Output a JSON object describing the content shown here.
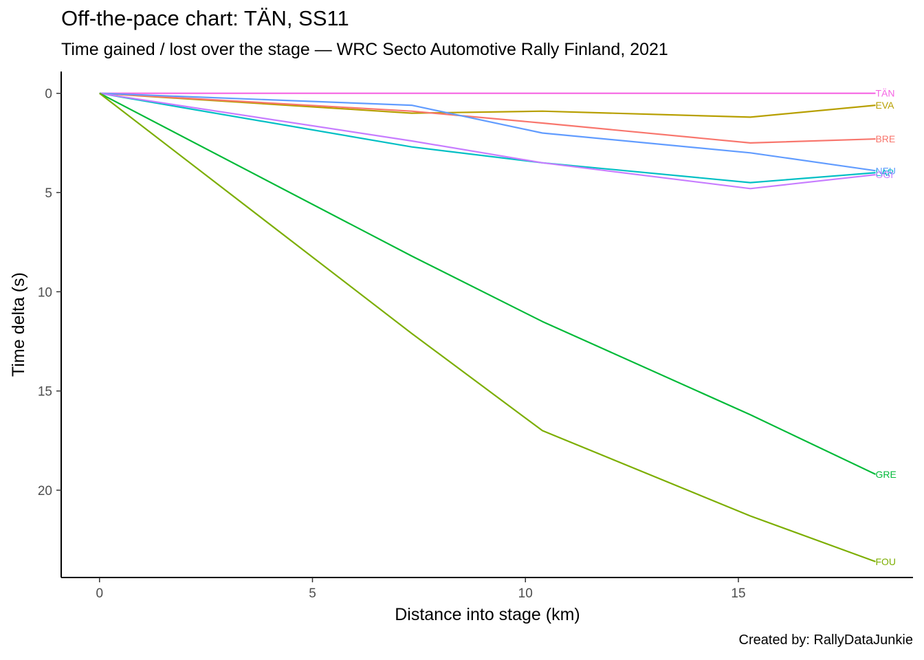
{
  "chart_data": {
    "type": "line",
    "title": "Off-the-pace chart: TÄN, SS11",
    "subtitle": "Time gained / lost over the stage — WRC Secto Automotive Rally Finland, 2021",
    "caption": "Created by: RallyDataJunkie",
    "xlabel": "Distance into stage (km)",
    "ylabel": "Time delta (s)",
    "xlim": [
      -0.9,
      19.1
    ],
    "ylim": [
      -1.1,
      24.4
    ],
    "y_reversed": true,
    "x_ticks": [
      0,
      5,
      10,
      15
    ],
    "y_ticks": [
      0,
      5,
      10,
      15,
      20
    ],
    "grid": false,
    "legend": "none (labels at line ends)",
    "series": [
      {
        "name": "TÄN",
        "color": "#F564E3",
        "x": [
          0,
          7.33,
          10.4,
          15.28,
          18.22
        ],
        "y": [
          0,
          0,
          0,
          0,
          0
        ]
      },
      {
        "name": "EVA",
        "color": "#B79F00",
        "x": [
          0,
          7.33,
          10.4,
          15.28,
          18.22
        ],
        "y": [
          0,
          1.0,
          0.9,
          1.2,
          0.6
        ]
      },
      {
        "name": "BRE",
        "color": "#F8766D",
        "x": [
          0,
          7.33,
          10.4,
          15.28,
          18.22
        ],
        "y": [
          0,
          0.9,
          1.5,
          2.5,
          2.3
        ]
      },
      {
        "name": "NEU",
        "color": "#619CFF",
        "x": [
          0,
          7.33,
          10.4,
          15.28,
          18.22
        ],
        "y": [
          0,
          0.6,
          2.0,
          3.0,
          3.9
        ]
      },
      {
        "name": "LAP",
        "color": "#00BFC4",
        "x": [
          0,
          7.33,
          10.4,
          15.28,
          18.22
        ],
        "y": [
          0,
          2.7,
          3.5,
          4.5,
          4.0
        ]
      },
      {
        "name": "OGI",
        "color": "#C77CFF",
        "x": [
          0,
          7.33,
          10.4,
          15.28,
          18.22
        ],
        "y": [
          0,
          2.4,
          3.5,
          4.8,
          4.1
        ]
      },
      {
        "name": "GRE",
        "color": "#00BA38",
        "x": [
          0,
          7.33,
          10.4,
          15.28,
          18.22
        ],
        "y": [
          0,
          8.2,
          11.5,
          16.2,
          19.2
        ]
      },
      {
        "name": "FOU",
        "color": "#7CAE00",
        "x": [
          0,
          7.33,
          10.4,
          15.28,
          18.22
        ],
        "y": [
          0,
          12.1,
          17.0,
          21.3,
          23.6
        ]
      }
    ]
  }
}
